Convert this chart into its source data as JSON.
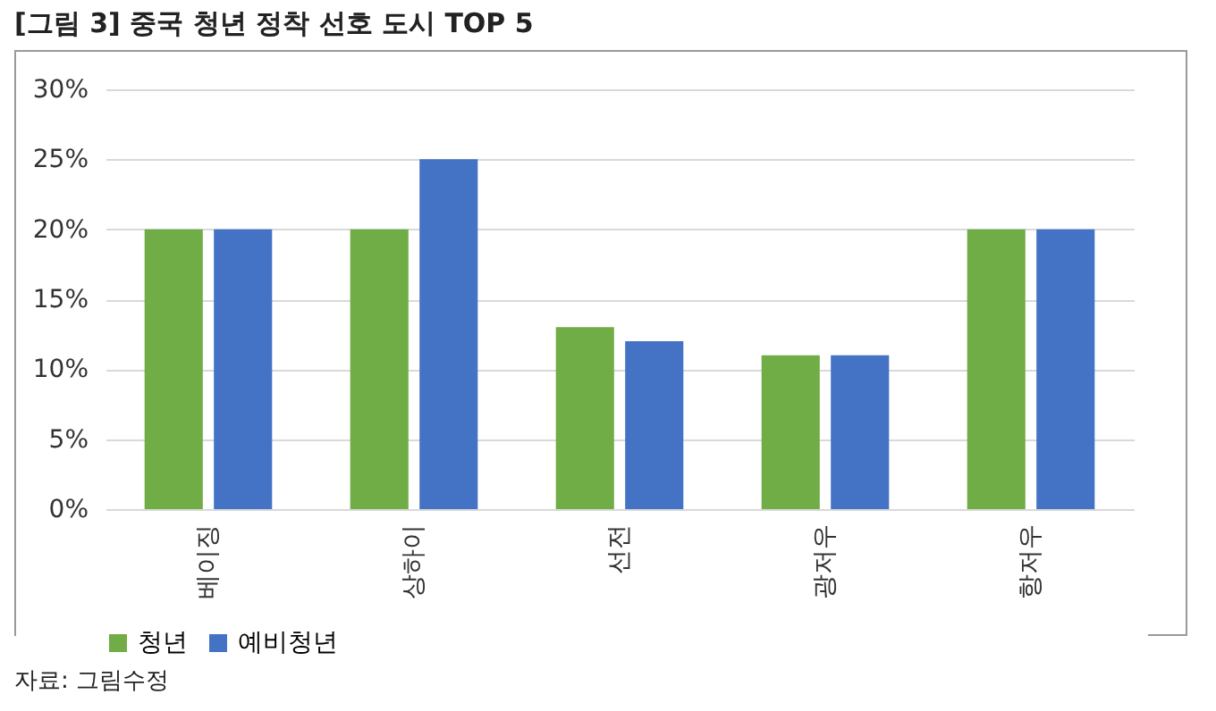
{
  "chart_data": {
    "type": "bar",
    "title": "[그림 3] 중국 청년 정착 선호 도시 TOP 5",
    "categories": [
      "베이징",
      "상하이",
      "선전",
      "광저우",
      "항저우"
    ],
    "series": [
      {
        "name": "청년",
        "color": "#70ad47",
        "values": [
          20,
          20,
          13,
          11,
          20
        ]
      },
      {
        "name": "예비청년",
        "color": "#4472c4",
        "values": [
          20,
          25,
          12,
          11,
          20
        ]
      }
    ],
    "ylim": [
      0,
      30
    ],
    "yticks": [
      {
        "value": 0,
        "label": "0%"
      },
      {
        "value": 5,
        "label": "5%"
      },
      {
        "value": 10,
        "label": "10%"
      },
      {
        "value": 15,
        "label": "15%"
      },
      {
        "value": 20,
        "label": "20%"
      },
      {
        "value": 25,
        "label": "25%"
      },
      {
        "value": 30,
        "label": "30%"
      }
    ],
    "grid": "y",
    "legend": "bottom",
    "annotations": [
      "자료: 그림수정"
    ]
  }
}
